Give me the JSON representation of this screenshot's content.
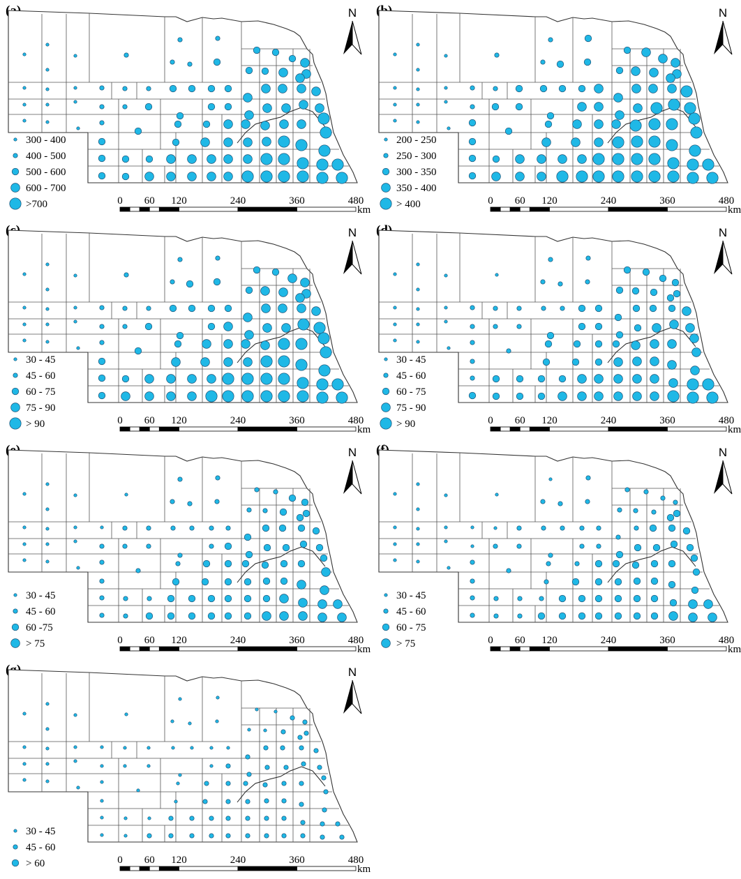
{
  "north_label": "N",
  "scale_ticks": [
    "0",
    "60",
    "120",
    "240",
    "360",
    "480"
  ],
  "scale_unit": "km",
  "colors": {
    "symbol_fill": "#1fb8e6",
    "symbol_stroke": "#1c4f73",
    "county_line": "#555555"
  },
  "panels": [
    {
      "id": "a",
      "label": "(a)",
      "legend": [
        "300 - 400",
        "400 - 500",
        "500 - 600",
        "600 - 700",
        ">700"
      ]
    },
    {
      "id": "b",
      "label": "(b)",
      "legend": [
        "200 - 250",
        "250 - 300",
        "300 - 350",
        "350 - 400",
        "> 400"
      ]
    },
    {
      "id": "c",
      "label": "(c)",
      "legend": [
        "30 - 45",
        "45 - 60",
        "60 - 75",
        "75 - 90",
        "> 90"
      ]
    },
    {
      "id": "d",
      "label": "(d)",
      "legend": [
        "30 - 45",
        "45 - 60",
        "60 - 75",
        "75 - 90",
        "> 90"
      ]
    },
    {
      "id": "e",
      "label": "(e)",
      "legend": [
        "30 - 45",
        "45 - 60",
        "60 -75",
        "> 75"
      ]
    },
    {
      "id": "f",
      "label": "(f)",
      "legend": [
        "30 - 45",
        "45 - 60",
        "60 - 75",
        "> 75"
      ]
    },
    {
      "id": "g",
      "label": "(g)",
      "legend": [
        "30 - 45",
        "45 - 60",
        "> 60"
      ]
    }
  ]
}
